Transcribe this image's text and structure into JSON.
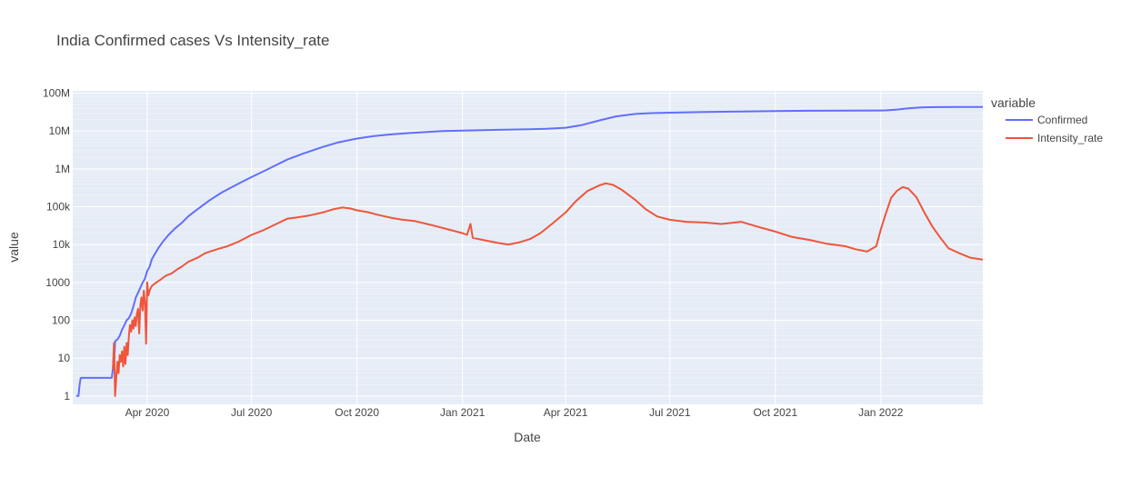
{
  "chart_data": {
    "type": "line",
    "title": "India Confirmed cases Vs Intensity_rate",
    "xlabel": "Date",
    "ylabel": "value",
    "y_scale": "log",
    "ylim": [
      0.6,
      115000000
    ],
    "xlim": [
      "2020-01-27",
      "2022-03-31"
    ],
    "grid": true,
    "legend": {
      "title": "variable",
      "position": "right"
    },
    "x_ticks": [
      {
        "date": "2020-04-01",
        "label": "Apr 2020"
      },
      {
        "date": "2020-07-01",
        "label": "Jul 2020"
      },
      {
        "date": "2020-10-01",
        "label": "Oct 2020"
      },
      {
        "date": "2021-01-01",
        "label": "Jan 2021"
      },
      {
        "date": "2021-04-01",
        "label": "Apr 2021"
      },
      {
        "date": "2021-07-01",
        "label": "Jul 2021"
      },
      {
        "date": "2021-10-01",
        "label": "Oct 2021"
      },
      {
        "date": "2022-01-01",
        "label": "Jan 2022"
      }
    ],
    "y_ticks": [
      {
        "value": 1,
        "label": "1"
      },
      {
        "value": 10,
        "label": "10"
      },
      {
        "value": 100,
        "label": "100"
      },
      {
        "value": 1000,
        "label": "1000"
      },
      {
        "value": 10000,
        "label": "10k"
      },
      {
        "value": 100000,
        "label": "100k"
      },
      {
        "value": 1000000,
        "label": "1M"
      },
      {
        "value": 10000000,
        "label": "10M"
      },
      {
        "value": 100000000,
        "label": "100M"
      }
    ],
    "series": [
      {
        "name": "Confirmed",
        "color": "#636efa",
        "points": [
          [
            "2020-01-30",
            1
          ],
          [
            "2020-02-01",
            1
          ],
          [
            "2020-02-02",
            2
          ],
          [
            "2020-02-03",
            3
          ],
          [
            "2020-02-20",
            3
          ],
          [
            "2020-03-01",
            3
          ],
          [
            "2020-03-02",
            5
          ],
          [
            "2020-03-03",
            6
          ],
          [
            "2020-03-04",
            28
          ],
          [
            "2020-03-06",
            31
          ],
          [
            "2020-03-08",
            39
          ],
          [
            "2020-03-10",
            56
          ],
          [
            "2020-03-12",
            73
          ],
          [
            "2020-03-14",
            100
          ],
          [
            "2020-03-16",
            114
          ],
          [
            "2020-03-18",
            151
          ],
          [
            "2020-03-20",
            236
          ],
          [
            "2020-03-22",
            396
          ],
          [
            "2020-03-24",
            536
          ],
          [
            "2020-03-26",
            727
          ],
          [
            "2020-03-28",
            987
          ],
          [
            "2020-03-30",
            1251
          ],
          [
            "2020-04-01",
            1998
          ],
          [
            "2020-04-03",
            2567
          ],
          [
            "2020-04-05",
            4067
          ],
          [
            "2020-04-08",
            5865
          ],
          [
            "2020-04-11",
            8356
          ],
          [
            "2020-04-15",
            12322
          ],
          [
            "2020-04-20",
            18539
          ],
          [
            "2020-04-25",
            26283
          ],
          [
            "2020-05-01",
            37257
          ],
          [
            "2020-05-07",
            56342
          ],
          [
            "2020-05-15",
            85940
          ],
          [
            "2020-05-25",
            144950
          ],
          [
            "2020-06-05",
            236657
          ],
          [
            "2020-06-20",
            410461
          ],
          [
            "2020-07-01",
            604641
          ],
          [
            "2020-07-15",
            968876
          ],
          [
            "2020-08-01",
            1750723
          ],
          [
            "2020-08-15",
            2526192
          ],
          [
            "2020-09-01",
            3769523
          ],
          [
            "2020-09-15",
            5020359
          ],
          [
            "2020-10-01",
            6312584
          ],
          [
            "2020-10-15",
            7307097
          ],
          [
            "2020-11-01",
            8229313
          ],
          [
            "2020-11-15",
            8814579
          ],
          [
            "2020-12-01",
            9462809
          ],
          [
            "2020-12-15",
            9932547
          ],
          [
            "2021-01-01",
            10286709
          ],
          [
            "2021-02-01",
            10757610
          ],
          [
            "2021-03-01",
            11124527
          ],
          [
            "2021-03-15",
            11409831
          ],
          [
            "2021-04-01",
            12221665
          ],
          [
            "2021-04-15",
            14291917
          ],
          [
            "2021-05-01",
            19164969
          ],
          [
            "2021-05-15",
            24372907
          ],
          [
            "2021-06-01",
            28175044
          ],
          [
            "2021-06-15",
            29633105
          ],
          [
            "2021-07-01",
            30458251
          ],
          [
            "2021-08-01",
            31695958
          ],
          [
            "2021-09-01",
            32857937
          ],
          [
            "2021-10-01",
            33766707
          ],
          [
            "2021-11-01",
            34285814
          ],
          [
            "2021-12-01",
            34596776
          ],
          [
            "2021-12-31",
            34838804
          ],
          [
            "2022-01-05",
            35018358
          ],
          [
            "2022-01-15",
            36850962
          ],
          [
            "2022-01-25",
            39543328
          ],
          [
            "2022-02-05",
            41952712
          ],
          [
            "2022-02-20",
            42824064
          ],
          [
            "2022-03-10",
            42975883
          ],
          [
            "2022-03-31",
            43024440
          ]
        ]
      },
      {
        "name": "Intensity_rate",
        "color": "#ef553b",
        "points": [
          [
            "2020-03-02",
            5
          ],
          [
            "2020-03-03",
            25
          ],
          [
            "2020-03-04",
            1
          ],
          [
            "2020-03-05",
            3
          ],
          [
            "2020-03-06",
            8
          ],
          [
            "2020-03-07",
            4
          ],
          [
            "2020-03-08",
            12
          ],
          [
            "2020-03-09",
            8
          ],
          [
            "2020-03-10",
            15
          ],
          [
            "2020-03-11",
            6
          ],
          [
            "2020-03-12",
            20
          ],
          [
            "2020-03-13",
            7
          ],
          [
            "2020-03-14",
            25
          ],
          [
            "2020-03-15",
            12
          ],
          [
            "2020-03-16",
            40
          ],
          [
            "2020-03-17",
            75
          ],
          [
            "2020-03-18",
            50
          ],
          [
            "2020-03-19",
            100
          ],
          [
            "2020-03-20",
            60
          ],
          [
            "2020-03-21",
            120
          ],
          [
            "2020-03-22",
            70
          ],
          [
            "2020-03-23",
            150
          ],
          [
            "2020-03-24",
            200
          ],
          [
            "2020-03-25",
            45
          ],
          [
            "2020-03-26",
            250
          ],
          [
            "2020-03-27",
            400
          ],
          [
            "2020-03-28",
            180
          ],
          [
            "2020-03-29",
            600
          ],
          [
            "2020-03-30",
            300
          ],
          [
            "2020-03-31",
            24
          ],
          [
            "2020-04-01",
            1000
          ],
          [
            "2020-04-02",
            450
          ],
          [
            "2020-04-03",
            600
          ],
          [
            "2020-04-04",
            700
          ],
          [
            "2020-04-05",
            800
          ],
          [
            "2020-04-07",
            900
          ],
          [
            "2020-04-09",
            1000
          ],
          [
            "2020-04-11",
            1100
          ],
          [
            "2020-04-13",
            1200
          ],
          [
            "2020-04-15",
            1350
          ],
          [
            "2020-04-18",
            1550
          ],
          [
            "2020-04-22",
            1700
          ],
          [
            "2020-04-26",
            2100
          ],
          [
            "2020-05-01",
            2600
          ],
          [
            "2020-05-07",
            3500
          ],
          [
            "2020-05-15",
            4500
          ],
          [
            "2020-05-22",
            6000
          ],
          [
            "2020-06-01",
            7500
          ],
          [
            "2020-06-10",
            9000
          ],
          [
            "2020-06-20",
            12000
          ],
          [
            "2020-07-01",
            18000
          ],
          [
            "2020-07-10",
            23000
          ],
          [
            "2020-07-20",
            32000
          ],
          [
            "2020-08-01",
            48000
          ],
          [
            "2020-08-10",
            52000
          ],
          [
            "2020-08-20",
            58000
          ],
          [
            "2020-09-01",
            70000
          ],
          [
            "2020-09-10",
            85000
          ],
          [
            "2020-09-18",
            95000
          ],
          [
            "2020-09-25",
            90000
          ],
          [
            "2020-10-01",
            80000
          ],
          [
            "2020-10-10",
            72000
          ],
          [
            "2020-10-20",
            60000
          ],
          [
            "2020-11-01",
            50000
          ],
          [
            "2020-11-10",
            45000
          ],
          [
            "2020-11-20",
            42000
          ],
          [
            "2020-12-01",
            35000
          ],
          [
            "2020-12-10",
            30000
          ],
          [
            "2020-12-20",
            25000
          ],
          [
            "2021-01-01",
            20000
          ],
          [
            "2021-01-05",
            18000
          ],
          [
            "2021-01-08",
            35000
          ],
          [
            "2021-01-10",
            15000
          ],
          [
            "2021-01-20",
            13000
          ],
          [
            "2021-02-01",
            11000
          ],
          [
            "2021-02-10",
            10000
          ],
          [
            "2021-02-20",
            11500
          ],
          [
            "2021-03-01",
            14000
          ],
          [
            "2021-03-10",
            20000
          ],
          [
            "2021-03-20",
            35000
          ],
          [
            "2021-04-01",
            70000
          ],
          [
            "2021-04-10",
            140000
          ],
          [
            "2021-04-20",
            260000
          ],
          [
            "2021-05-01",
            370000
          ],
          [
            "2021-05-06",
            414000
          ],
          [
            "2021-05-12",
            380000
          ],
          [
            "2021-05-20",
            280000
          ],
          [
            "2021-06-01",
            150000
          ],
          [
            "2021-06-10",
            85000
          ],
          [
            "2021-06-20",
            55000
          ],
          [
            "2021-07-01",
            45000
          ],
          [
            "2021-07-15",
            40000
          ],
          [
            "2021-08-01",
            38000
          ],
          [
            "2021-08-15",
            35000
          ],
          [
            "2021-09-01",
            40000
          ],
          [
            "2021-09-15",
            30000
          ],
          [
            "2021-10-01",
            22000
          ],
          [
            "2021-10-15",
            16000
          ],
          [
            "2021-11-01",
            13000
          ],
          [
            "2021-11-15",
            10500
          ],
          [
            "2021-12-01",
            9000
          ],
          [
            "2021-12-10",
            7500
          ],
          [
            "2021-12-20",
            6500
          ],
          [
            "2021-12-28",
            9000
          ],
          [
            "2022-01-01",
            25000
          ],
          [
            "2022-01-05",
            60000
          ],
          [
            "2022-01-10",
            170000
          ],
          [
            "2022-01-15",
            260000
          ],
          [
            "2022-01-20",
            330000
          ],
          [
            "2022-01-25",
            300000
          ],
          [
            "2022-02-01",
            180000
          ],
          [
            "2022-02-08",
            70000
          ],
          [
            "2022-02-15",
            30000
          ],
          [
            "2022-02-22",
            15000
          ],
          [
            "2022-03-01",
            8000
          ],
          [
            "2022-03-10",
            6000
          ],
          [
            "2022-03-20",
            4500
          ],
          [
            "2022-03-31",
            4000
          ]
        ]
      }
    ]
  }
}
